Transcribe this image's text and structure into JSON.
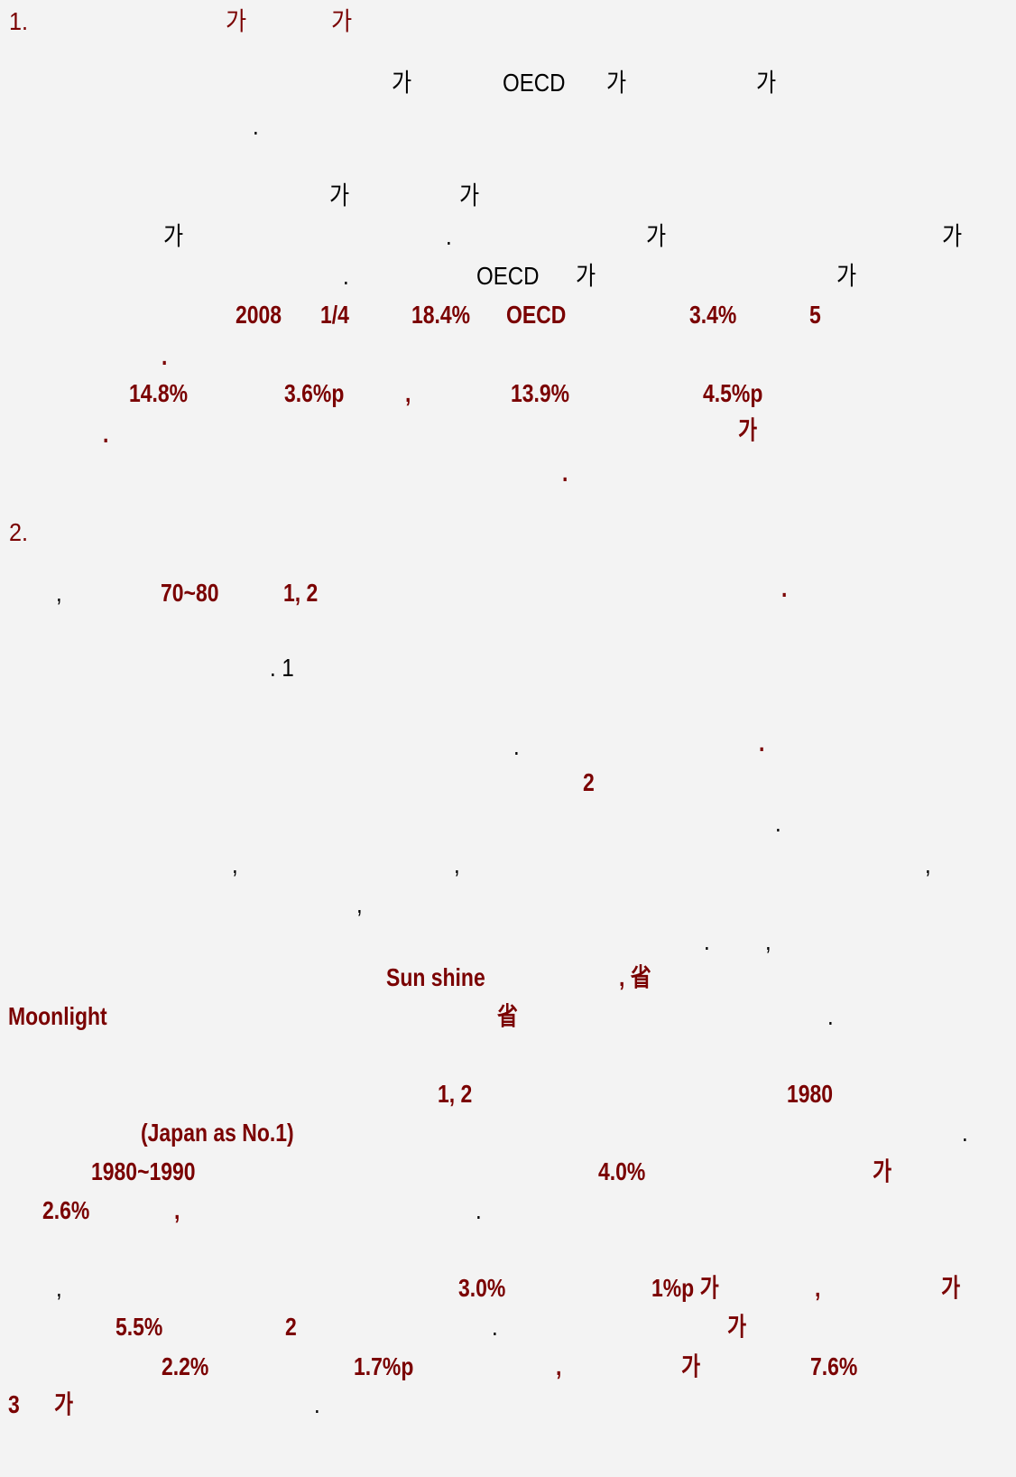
{
  "colors": {
    "body_text": "#000000",
    "emphasis": "#7a0000",
    "background": "#f3f3f3"
  },
  "page": {
    "s1": {
      "heading_num": "1.",
      "heading_ga1": "가",
      "heading_ga2": "가",
      "l1_ga": "가",
      "l1_oecd": "OECD",
      "l1_ga2": "가",
      "l1_ga3": "가",
      "l2_dot": ".",
      "l3_ga": "가",
      "l3_ga2": "가",
      "l4_ga": "가",
      "l4_dot": ".",
      "l4_ga2": "가",
      "l4_ga3": "가",
      "l5_dot": ".",
      "l5_oecd": "OECD",
      "l5_ga": "가",
      "l5_ga2": "가",
      "l6_2008": "2008",
      "l6_q": "1/4",
      "l6_pct": "18.4%",
      "l6_oecd": "OECD",
      "l6_pct2": "3.4%",
      "l6_5": "5",
      "l7_dot": ".",
      "l8_pct": "14.8%",
      "l8_pp": "3.6%p",
      "l8_comma": ",",
      "l8_pct2": "13.9%",
      "l8_pp2": "4.5%p",
      "l9_dot": ".",
      "l9_ga": "가",
      "l10_dot": "."
    },
    "s2": {
      "heading_num": "2.",
      "l1_comma": ",",
      "l1_years": "70~80",
      "l1_12": "1,  2",
      "l1_dot": ".",
      "l2_dot1": ". 1",
      "l3_dot": ".",
      "l3_dot2": ".",
      "l4_2": "2",
      "l5_dot": ".",
      "l6_c1": ",",
      "l6_c2": ",",
      "l6_c3": ",",
      "l7_c": ",",
      "l8_dot": ".",
      "l8_c": ",",
      "l9_sun": "Sun  shine",
      "l9_saeng": ",  省",
      "l10_moon": "Moonlight",
      "l10_saeng": "省",
      "l10_dot": ".",
      "l11_12": "1,  2",
      "l11_1980": "1980",
      "l12_japan": "(Japan  as  No.1)",
      "l12_dot": ".",
      "l13_years": "1980~1990",
      "l13_pct": "4.0%",
      "l13_ga": "가",
      "l14_pct": "2.6%",
      "l14_comma": ",",
      "l14_dot": ".",
      "l15_comma": ",",
      "l15_pct": "3.0%",
      "l15_pp": "1%p  가",
      "l15_comma2": ",",
      "l15_ga": "가",
      "l16_pct": "5.5%",
      "l16_2": "2",
      "l16_dot": ".",
      "l16_ga": "가",
      "l17_pct": "2.2%",
      "l17_pp": "1.7%p",
      "l17_comma": ",",
      "l17_ga": "가",
      "l17_pct2": "7.6%",
      "l18_3": "3",
      "l18_ga": "가",
      "l18_dot": "."
    }
  }
}
